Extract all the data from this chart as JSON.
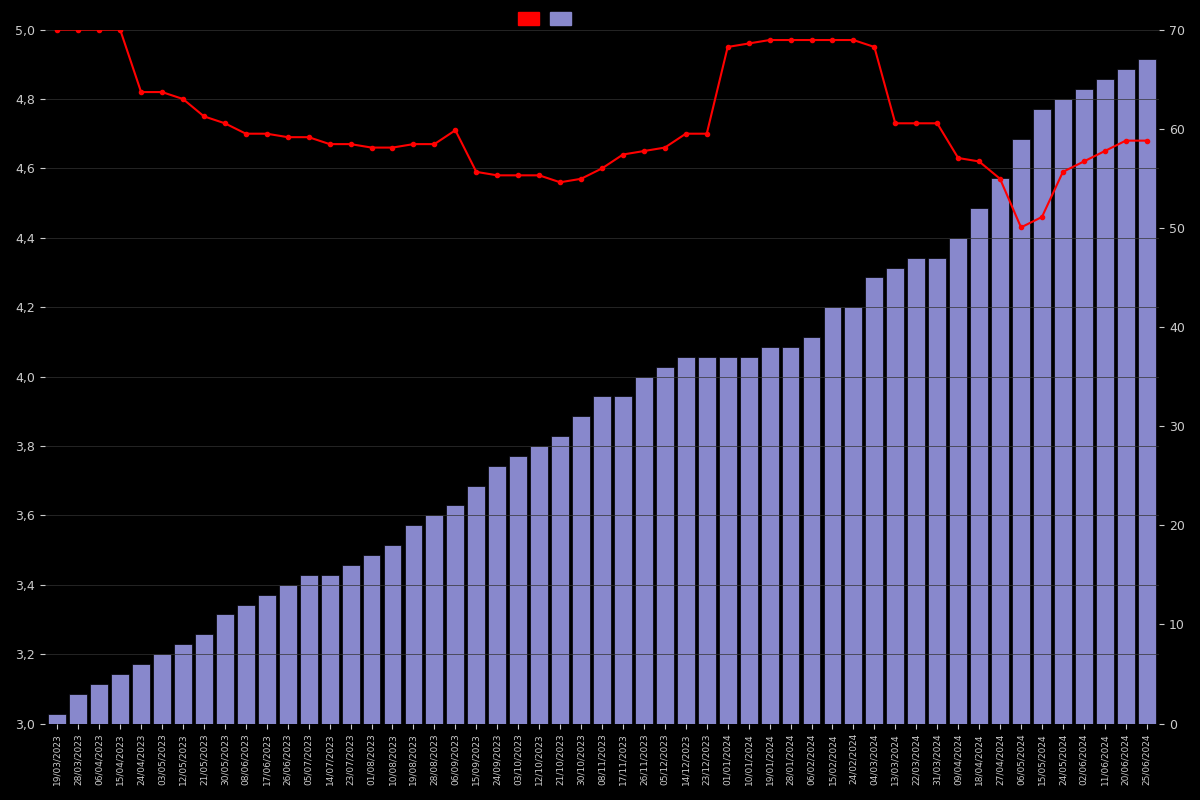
{
  "dates": [
    "19/03/2023",
    "28/03/2023",
    "06/04/2023",
    "15/04/2023",
    "24/04/2023",
    "03/05/2023",
    "12/05/2023",
    "21/05/2023",
    "30/05/2023",
    "08/06/2023",
    "17/06/2023",
    "26/06/2023",
    "05/07/2023",
    "14/07/2023",
    "23/07/2023",
    "01/08/2023",
    "10/08/2023",
    "19/08/2023",
    "28/08/2023",
    "06/09/2023",
    "15/09/2023",
    "24/09/2023",
    "03/10/2023",
    "12/10/2023",
    "21/10/2023",
    "30/10/2023",
    "08/11/2023",
    "17/11/2023",
    "26/11/2023",
    "05/12/2023",
    "14/12/2023",
    "23/12/2023",
    "01/01/2024",
    "10/01/2024",
    "19/01/2024",
    "28/01/2024",
    "06/02/2024",
    "15/02/2024",
    "24/02/2024",
    "04/03/2024",
    "13/03/2024",
    "22/03/2024",
    "31/03/2024",
    "09/04/2024",
    "18/04/2024",
    "27/04/2024",
    "06/05/2024",
    "15/05/2024",
    "24/05/2024",
    "02/06/2024",
    "11/06/2024",
    "20/06/2024",
    "25/06/2024"
  ],
  "bar_counts": [
    1,
    3,
    4,
    5,
    6,
    7,
    8,
    9,
    11,
    12,
    13,
    14,
    15,
    15,
    16,
    17,
    18,
    20,
    21,
    22,
    24,
    26,
    27,
    28,
    29,
    31,
    33,
    33,
    35,
    36,
    37,
    37,
    37,
    37,
    38,
    38,
    39,
    42,
    42,
    45,
    46,
    47,
    47,
    49,
    52,
    55,
    59,
    62,
    63,
    64,
    65,
    66,
    67
  ],
  "line_values": [
    5.0,
    5.0,
    5.0,
    5.0,
    4.82,
    4.82,
    4.8,
    4.75,
    4.73,
    4.7,
    4.7,
    4.69,
    4.69,
    4.67,
    4.67,
    4.66,
    4.66,
    4.67,
    4.67,
    4.71,
    4.59,
    4.58,
    4.58,
    4.58,
    4.56,
    4.57,
    4.6,
    4.64,
    4.65,
    4.66,
    4.7,
    4.7,
    4.95,
    4.96,
    4.97,
    4.97,
    4.97,
    4.97,
    4.97,
    4.95,
    4.73,
    4.73,
    4.73,
    4.63,
    4.62,
    4.57,
    4.43,
    4.46,
    4.59,
    4.62,
    4.65,
    4.68,
    4.68
  ],
  "background_color": "#000000",
  "bar_color": "#8888cc",
  "bar_edge_color": "#000000",
  "line_color": "#ff0000",
  "text_color": "#cccccc",
  "grid_color": "#333333",
  "left_ylim": [
    3.0,
    5.0
  ],
  "right_ylim": [
    0,
    70
  ],
  "left_yticks": [
    3.0,
    3.2,
    3.4,
    3.6,
    3.8,
    4.0,
    4.2,
    4.4,
    4.6,
    4.8,
    5.0
  ],
  "right_yticks": [
    0,
    10,
    20,
    30,
    40,
    50,
    60,
    70
  ],
  "line_marker": "o",
  "line_marker_size": 3,
  "line_width": 1.5
}
